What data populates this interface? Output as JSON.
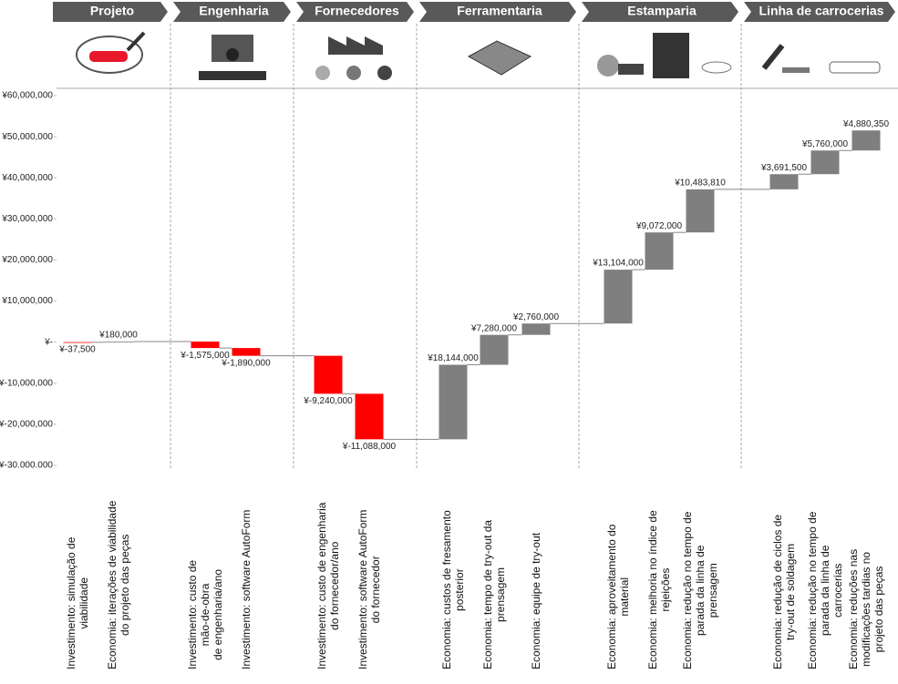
{
  "chart_data": {
    "type": "waterfall",
    "groups": [
      "Projeto",
      "Engenharia",
      "Fornecedores",
      "Ferramentaria",
      "Estamparia",
      "Linha de carrocerias"
    ],
    "categories": [
      "Investimento: simulação de\nviabilidade",
      "Economia: iterações de viabilidade\ndo projeto das peças",
      "Investimento: custo de\nmão-de-obra\nde engenharia/ano",
      "Investimento: software AutoForm",
      "Investimento: custo de engenharia\ndo fornecedor/ano",
      "Investimento: software AutoForm\ndo fornecedor",
      "Economia: custos de fresamento\nposterior",
      "Economia: tempo de try-out da\nprensagem",
      "Economia: equipe de try-out",
      "Economia: aproveitamento do\nmaterial",
      "Economia: melhoria no índice de\nrejeições",
      "Economia: redução no tempo de\nparada da linha de\nprensagem",
      "Economia: redução de ciclos de\ntry-out de soldagem",
      "Economia: redução no tempo de\nparada da linha de\ncarrocerias",
      "Economia: reduções nas\nmodificações tardias no\nprojeto das peças"
    ],
    "values": [
      -37500,
      180000,
      -1575000,
      -1890000,
      -9240000,
      -11088000,
      18144000,
      7280000,
      2760000,
      13104000,
      9072000,
      10483810,
      3691500,
      5760000,
      4880350
    ],
    "value_labels": [
      "¥-37,500",
      "¥180,000",
      "¥-1,575,000",
      "¥-1,890,000",
      "¥-9,240,000",
      "¥-11,088,000",
      "¥18,144,000",
      "¥7,280,000",
      "¥2,760,000",
      "¥13,104,000",
      "¥9,072,000",
      "¥10,483,810",
      "¥3,691,500",
      "¥5,760,000",
      "¥4,880,350"
    ],
    "color_decrease": "#ff0000",
    "color_increase": "#7f7f7f",
    "ylim": [
      -30000000,
      60000000
    ],
    "yticks": [
      {
        "value": 60000000,
        "label": "¥60,000,000"
      },
      {
        "value": 50000000,
        "label": "¥50,000,000"
      },
      {
        "value": 40000000,
        "label": "¥40,000,000"
      },
      {
        "value": 30000000,
        "label": "¥30,000,000"
      },
      {
        "value": 20000000,
        "label": "¥20,000,000"
      },
      {
        "value": 10000000,
        "label": "¥10,000,000"
      },
      {
        "value": 0,
        "label": "¥-"
      },
      {
        "value": -10000000,
        "label": "¥-10,000,000"
      },
      {
        "value": -20000000,
        "label": "¥-20,000,000"
      },
      {
        "value": -30000000,
        "label": "¥-30.000.000"
      }
    ]
  }
}
